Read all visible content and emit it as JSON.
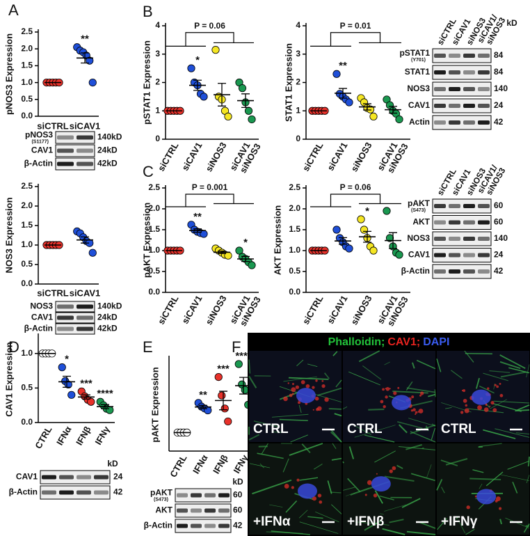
{
  "panel_labels": [
    "A",
    "B",
    "C",
    "D",
    "E",
    "F"
  ],
  "chart_data": [
    {
      "type": "dot",
      "ylabel": "pNOS3 Expression",
      "categories": [
        "siCTRL",
        "siCAV1"
      ],
      "colors": [
        "#e8312a",
        "#1f4fd8"
      ],
      "values": [
        [
          1,
          1,
          1,
          1,
          1
        ],
        [
          2.05,
          1.95,
          1.9,
          1.8,
          1.65,
          1.0
        ]
      ],
      "means": [
        1,
        1.73
      ],
      "errors": [
        0,
        0.15
      ],
      "significance": [
        null,
        "**"
      ],
      "ylim": [
        0,
        2.5
      ],
      "yticks": [
        {
          "value": 0,
          "label": "0.0"
        },
        0.5,
        {
          "value": 1,
          "label": "1.0"
        },
        1.5,
        {
          "value": 2,
          "label": "2.0"
        },
        2.5
      ]
    },
    {
      "type": "dot",
      "ylabel": "NOS3 Expression",
      "categories": [
        "siCTRL",
        "siCAV1"
      ],
      "colors": [
        "#e8312a",
        "#1f4fd8"
      ],
      "values": [
        [
          1,
          1,
          1,
          1,
          1
        ],
        [
          1.35,
          1.3,
          1.2,
          1.1,
          1.05,
          0.8
        ]
      ],
      "means": [
        1,
        1.13
      ],
      "errors": [
        0,
        0.08
      ],
      "significance": [
        null,
        null
      ],
      "ylim": [
        0,
        2.5
      ],
      "yticks": [
        {
          "value": 0,
          "label": "0.0"
        },
        0.5,
        {
          "value": 1,
          "label": "1.0"
        },
        1.5,
        {
          "value": 2,
          "label": "2.0"
        },
        2.5
      ]
    },
    {
      "type": "dot",
      "ylabel": "pSTAT1 Expression",
      "categories": [
        "siCTRL",
        "siCAV1",
        "siNOS3",
        [
          "siCAV1",
          "siNOS3"
        ]
      ],
      "colors": [
        "#e8312a",
        "#1f4fd8",
        "#f5e623",
        "#1a9850"
      ],
      "values": [
        [
          1,
          1,
          1,
          1,
          1
        ],
        [
          2.5,
          2.0,
          1.9,
          1.6,
          1.5
        ],
        [
          3.15,
          1.5,
          1.4,
          1.0,
          0.8
        ],
        [
          2.0,
          1.8,
          1.3,
          1.0,
          0.7
        ]
      ],
      "means": [
        1,
        1.9,
        1.57,
        1.36
      ],
      "errors": [
        0,
        0.18,
        0.4,
        0.24
      ],
      "significance": [
        null,
        "*",
        null,
        null
      ],
      "bracket_label": "P = 0.06",
      "ylim": [
        0,
        4
      ],
      "yticks": [
        0,
        1,
        2,
        3,
        4
      ]
    },
    {
      "type": "dot",
      "ylabel": "STAT1 Expression",
      "categories": [
        "siCTRL",
        "siCAV1",
        "siNOS3",
        [
          "siCAV1",
          "siNOS3"
        ]
      ],
      "colors": [
        "#e8312a",
        "#1f4fd8",
        "#f5e623",
        "#1a9850"
      ],
      "values": [
        [
          1,
          1,
          1,
          1,
          1
        ],
        [
          2.3,
          1.6,
          1.5,
          1.4,
          1.3
        ],
        [
          1.45,
          1.3,
          1.1,
          1.05,
          0.8
        ],
        [
          1.4,
          1.2,
          1.0,
          0.9,
          0.7
        ]
      ],
      "means": [
        1,
        1.62,
        1.14,
        1.04
      ],
      "errors": [
        0,
        0.17,
        0.11,
        0.12
      ],
      "significance": [
        null,
        "**",
        null,
        null
      ],
      "bracket_label": "P = 0.01",
      "ylim": [
        0,
        4
      ],
      "yticks": [
        0,
        1,
        2,
        3,
        4
      ]
    },
    {
      "type": "dot",
      "ylabel": "pAKT Expression",
      "categories": [
        "siCTRL",
        "siCAV1",
        "siNOS3",
        [
          "siCAV1",
          "siNOS3"
        ]
      ],
      "colors": [
        "#e8312a",
        "#1f4fd8",
        "#f5e623",
        "#1a9850"
      ],
      "values": [
        [
          1,
          1,
          1,
          1,
          1
        ],
        [
          1.62,
          1.5,
          1.45,
          1.42,
          1.4
        ],
        [
          1.05,
          1.0,
          0.95,
          0.9,
          0.88
        ],
        [
          1.0,
          0.85,
          0.8,
          0.72,
          0.65
        ]
      ],
      "means": [
        1,
        1.48,
        0.96,
        0.8
      ],
      "errors": [
        0,
        0.04,
        0.03,
        0.06
      ],
      "significance": [
        null,
        "**",
        null,
        "*"
      ],
      "bracket_label": "P = 0.001",
      "ylim": [
        0,
        2.5
      ],
      "yticks": [
        {
          "value": 0,
          "label": "0.0"
        },
        0.5,
        {
          "value": 1,
          "label": "1.0"
        },
        1.5,
        {
          "value": 2,
          "label": "2.0"
        },
        2.5
      ]
    },
    {
      "type": "dot",
      "ylabel": "AKT Expression",
      "categories": [
        "siCTRL",
        "siCAV1",
        "siNOS3",
        [
          "siCAV1",
          "siNOS3"
        ]
      ],
      "colors": [
        "#e8312a",
        "#1f4fd8",
        "#f5e623",
        "#1a9850"
      ],
      "values": [
        [
          1,
          1,
          1,
          1,
          1
        ],
        [
          1.5,
          1.3,
          1.2,
          1.1,
          1.05
        ],
        [
          1.75,
          1.5,
          1.3,
          1.1,
          1.0
        ],
        [
          1.95,
          1.3,
          1.1,
          0.95,
          0.9
        ]
      ],
      "means": [
        1,
        1.23,
        1.33,
        1.24
      ],
      "errors": [
        0,
        0.08,
        0.13,
        0.19
      ],
      "significance": [
        null,
        null,
        "*",
        null
      ],
      "bracket_label": "P = 0.06",
      "ylim": [
        0,
        2.5
      ],
      "yticks": [
        {
          "value": 0,
          "label": "0.0"
        },
        0.5,
        {
          "value": 1,
          "label": "1.0"
        },
        1.5,
        {
          "value": 2,
          "label": "2.0"
        },
        2.5
      ]
    },
    {
      "type": "dot",
      "ylabel": "CAV1 Expression",
      "categories": [
        "CTRL",
        "IFNα",
        "IFNβ",
        "IFNγ"
      ],
      "colors": [
        "#ffffff",
        "#1f4fd8",
        "#e8312a",
        "#1a9850"
      ],
      "values": [
        [
          1,
          1,
          1,
          1
        ],
        [
          0.8,
          0.6,
          0.55,
          0.4
        ],
        [
          0.45,
          0.38,
          0.33,
          0.3
        ],
        [
          0.3,
          0.25,
          0.2,
          0.18
        ]
      ],
      "means": [
        1,
        0.59,
        0.37,
        0.23
      ],
      "errors": [
        0,
        0.08,
        0.03,
        0.03
      ],
      "significance": [
        null,
        "*",
        "***",
        "****"
      ],
      "ylim": [
        0,
        1.25
      ],
      "yticks": [
        {
          "value": 0,
          "label": "0.0"
        },
        0.5,
        {
          "value": 1,
          "label": "1.0"
        }
      ]
    },
    {
      "type": "dot",
      "ylabel": "pAKT Expression",
      "categories": [
        "CTRL",
        "IFNα",
        "IFNβ",
        "IFNγ"
      ],
      "colors": [
        "#ffffff",
        "#1f4fd8",
        "#e8312a",
        "#1a9850"
      ],
      "values": [
        [
          1,
          1,
          1,
          1
        ],
        [
          2.6,
          2.4,
          2.3,
          2.2
        ],
        [
          4.0,
          3.0,
          2.3,
          1.6
        ],
        [
          4.7,
          3.6,
          3.3,
          2.5
        ]
      ],
      "means": [
        1,
        2.38,
        2.73,
        3.53
      ],
      "errors": [
        0,
        0.09,
        0.5,
        0.45
      ],
      "significance": [
        null,
        "**",
        "***",
        "****"
      ],
      "ylim": [
        0,
        5
      ]
    }
  ],
  "blots": [
    {
      "rows": [
        {
          "label": "pNOS3",
          "sublabel": "(S1177)",
          "size": "140kD"
        },
        {
          "label": "CAV1",
          "size": "24kD"
        },
        {
          "label": "β-Actin",
          "size": "42kD"
        }
      ]
    },
    {
      "rows": [
        {
          "label": "NOS3",
          "size": "140kD"
        },
        {
          "label": "CAV1",
          "size": "24kD"
        },
        {
          "label": "β-Actin",
          "size": "42kD"
        }
      ]
    },
    {
      "columns": [
        "siCTRL",
        "siCAV1",
        "siNOS3",
        [
          "siCAV1/",
          "siNOS3"
        ]
      ],
      "unit": "kD",
      "rows": [
        {
          "label": "pSTAT1",
          "sublabel": "(Y701)",
          "size": "84"
        },
        {
          "label": "STAT1",
          "size": "84"
        },
        {
          "label": "NOS3",
          "size": "140"
        },
        {
          "label": "CAV1",
          "size": "24"
        },
        {
          "label": "Actin",
          "size": "42"
        }
      ]
    },
    {
      "columns": [
        "siCTRL",
        "siCAV1",
        "siNOS3",
        [
          "siCAV1/",
          "siNOS3"
        ]
      ],
      "rows": [
        {
          "label": "pAKT",
          "sublabel": "(S473)",
          "size": "60"
        },
        {
          "label": "AKT",
          "size": "60"
        },
        {
          "label": "NOS3",
          "size": "140"
        },
        {
          "label": "CAV1",
          "size": "24"
        },
        {
          "label": "β-Actin",
          "size": "42"
        }
      ]
    },
    {
      "unit": "kD",
      "rows": [
        {
          "label": "CAV1",
          "size": "24"
        },
        {
          "label": "β-Actin",
          "size": "42"
        }
      ]
    },
    {
      "unit": "kD",
      "rows": [
        {
          "label": "pAKT",
          "sublabel": "(S473)",
          "size": "60"
        },
        {
          "label": "AKT",
          "size": "60"
        },
        {
          "label": "β-Actin",
          "size": "42"
        }
      ]
    }
  ],
  "micrograph": {
    "title": [
      "Phalloidin;",
      "CAV1;",
      "DAPI"
    ],
    "title_colors": [
      "#22c33a",
      "#e8231f",
      "#3a5cf0"
    ],
    "labels": [
      "CTRL",
      "CTRL",
      "CTRL",
      "+IFNα",
      "+IFNβ",
      "+IFNγ"
    ]
  }
}
